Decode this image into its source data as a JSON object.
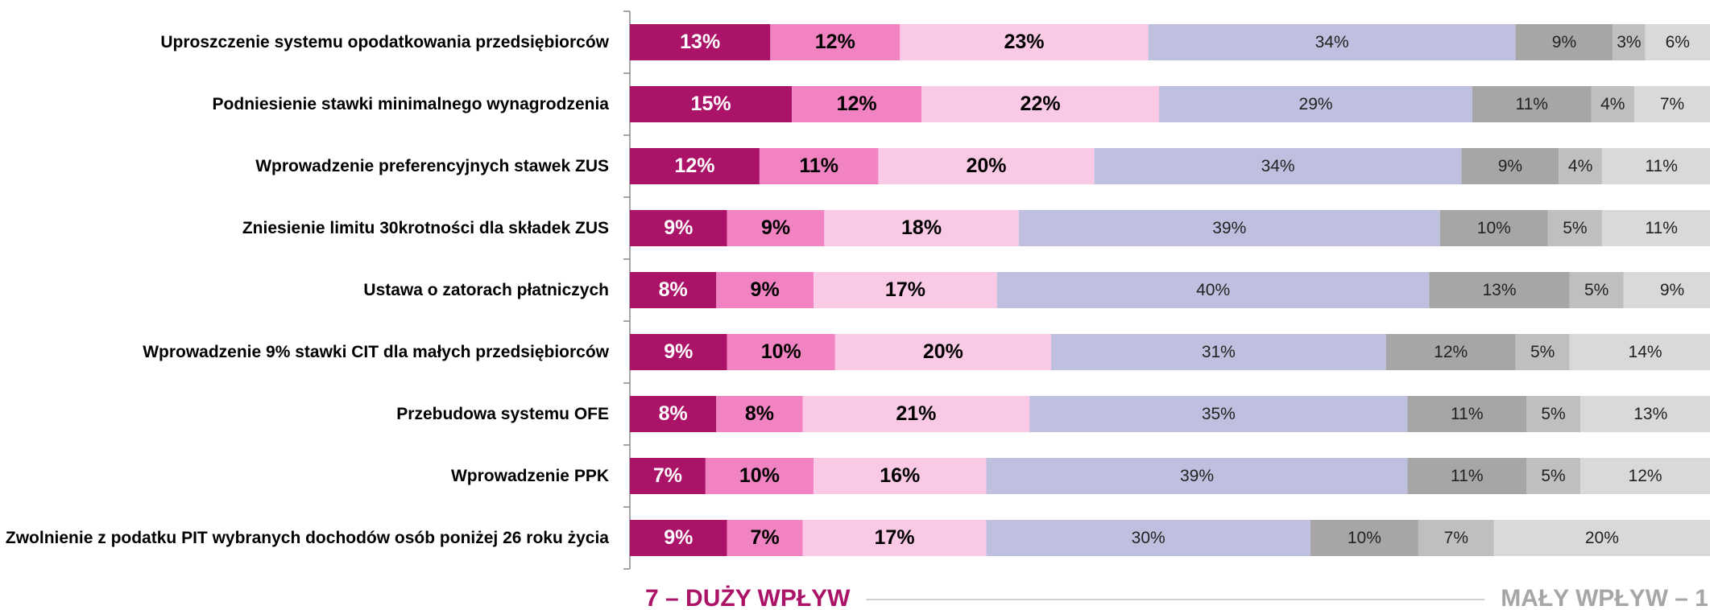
{
  "chart_data": {
    "type": "stacked_bar_horizontal",
    "categories": [
      "Uproszczenie systemu opodatkowania przedsiębiorców",
      "Podniesienie stawki minimalnego wynagrodzenia",
      "Wprowadzenie preferencyjnych stawek ZUS",
      "Zniesienie limitu 30krotności dla składek ZUS",
      "Ustawa o zatorach płatniczych",
      "Wprowadzenie 9% stawki CIT dla małych przedsiębiorców",
      "Przebudowa systemu OFE",
      "Wprowadzenie PPK",
      "Zwolnienie z podatku PIT wybranych dochodów osób poniżej 26 roku życia"
    ],
    "series": [
      {
        "color": "#ab1368",
        "values": [
          13,
          15,
          12,
          9,
          8,
          9,
          8,
          7,
          9
        ],
        "value_labels": [
          "13%",
          "15%",
          "12%",
          "9%",
          "8%",
          "9%",
          "8%",
          "7%",
          "9%"
        ]
      },
      {
        "color": "#f183c2",
        "values": [
          12,
          12,
          11,
          9,
          9,
          10,
          8,
          10,
          7
        ],
        "value_labels": [
          "12%",
          "12%",
          "11%",
          "9%",
          "9%",
          "10%",
          "8%",
          "10%",
          "7%"
        ]
      },
      {
        "color": "#f9c9e6",
        "values": [
          23,
          22,
          20,
          18,
          17,
          20,
          21,
          16,
          17
        ],
        "value_labels": [
          "23%",
          "22%",
          "20%",
          "18%",
          "17%",
          "20%",
          "21%",
          "16%",
          "17%"
        ]
      },
      {
        "color": "#bfbfdf",
        "values": [
          34,
          29,
          34,
          39,
          40,
          31,
          35,
          39,
          30
        ],
        "value_labels": [
          "34%",
          "29%",
          "34%",
          "39%",
          "40%",
          "31%",
          "35%",
          "39%",
          "30%"
        ]
      },
      {
        "color": "#a6a6a6",
        "values": [
          9,
          11,
          9,
          10,
          13,
          12,
          11,
          11,
          10
        ],
        "value_labels": [
          "9%",
          "11%",
          "9%",
          "10%",
          "13%",
          "12%",
          "11%",
          "11%",
          "10%"
        ]
      },
      {
        "color": "#bfbfbf",
        "values": [
          3,
          4,
          4,
          5,
          5,
          5,
          5,
          5,
          7
        ],
        "value_labels": [
          "3%",
          "4%",
          "4%",
          "5%",
          "5%",
          "5%",
          "5%",
          "5%",
          "7%"
        ]
      },
      {
        "color": "#d9d9d9",
        "values": [
          6,
          7,
          11,
          11,
          9,
          14,
          13,
          12,
          20
        ],
        "value_labels": [
          "6%",
          "7%",
          "11%",
          "11%",
          "9%",
          "14%",
          "13%",
          "12%",
          "20%"
        ]
      }
    ],
    "xlim": [
      0,
      100
    ],
    "annotations": [
      "7 – DUŻY WPŁYW",
      "MAŁY WPŁYW – 1"
    ]
  }
}
